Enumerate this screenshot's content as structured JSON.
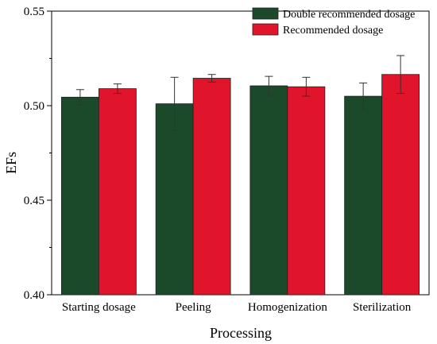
{
  "chart_data": {
    "type": "bar",
    "title": "",
    "xlabel": "Processing",
    "ylabel": "EFs",
    "ylim": [
      0.4,
      0.55
    ],
    "yticks": [
      "0.40",
      "0.45",
      "0.50",
      "0.55"
    ],
    "categories": [
      "Starting dosage",
      "Peeling",
      "Homogenization",
      "Sterilization"
    ],
    "series": [
      {
        "name": "Double recommended dosage",
        "color": "#1a4a2a",
        "values": [
          0.5045,
          0.501,
          0.5105,
          0.505
        ],
        "errors": [
          0.004,
          0.014,
          0.005,
          0.007
        ]
      },
      {
        "name": "Recommended dosage",
        "color": "#e0142a",
        "values": [
          0.509,
          0.5145,
          0.51,
          0.5165
        ],
        "errors": [
          0.0025,
          0.002,
          0.005,
          0.01
        ]
      }
    ],
    "legend": "top-right",
    "grid": false
  }
}
